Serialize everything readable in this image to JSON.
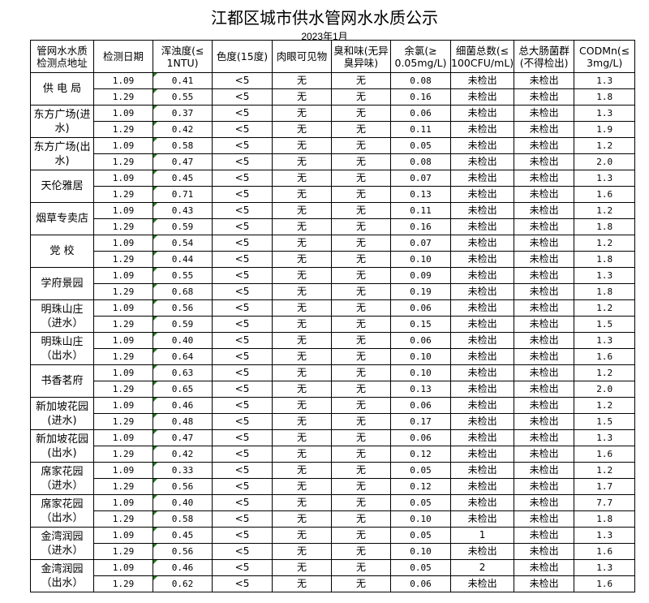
{
  "title": "江都区城市供水管网水水质公示",
  "subtitle": "2023年1月",
  "table": {
    "headers": [
      "管网水水质\n检测点地址",
      "检测日期",
      "浑浊度(≤\n1NTU)",
      "色度(15度)",
      "肉眼可见物",
      "臭和味(无异\n臭异味)",
      "余氯(≥\n0.05mg/L)",
      "细菌总数(≤\n100CFU/mL)",
      "总大肠菌群\n(不得检出)",
      "CODMn(≤\n3mg/L)"
    ],
    "sites": [
      {
        "name": "供 电 局",
        "rows": [
          [
            "1.09",
            "0.41",
            "<5",
            "无",
            "无",
            "0.08",
            "未检出",
            "未检出",
            "1.3"
          ],
          [
            "1.29",
            "0.55",
            "<5",
            "无",
            "无",
            "0.16",
            "未检出",
            "未检出",
            "1.8"
          ]
        ]
      },
      {
        "name": "东方广场(进\n水)",
        "rows": [
          [
            "1.09",
            "0.37",
            "<5",
            "无",
            "无",
            "0.06",
            "未检出",
            "未检出",
            "1.3"
          ],
          [
            "1.29",
            "0.42",
            "<5",
            "无",
            "无",
            "0.11",
            "未检出",
            "未检出",
            "1.9"
          ]
        ]
      },
      {
        "name": "东方广场(出\n水)",
        "rows": [
          [
            "1.09",
            "0.58",
            "<5",
            "无",
            "无",
            "0.05",
            "未检出",
            "未检出",
            "1.2"
          ],
          [
            "1.29",
            "0.47",
            "<5",
            "无",
            "无",
            "0.08",
            "未检出",
            "未检出",
            "2.0"
          ]
        ]
      },
      {
        "name": "天伦雅居",
        "rows": [
          [
            "1.09",
            "0.45",
            "<5",
            "无",
            "无",
            "0.07",
            "未检出",
            "未检出",
            "1.3"
          ],
          [
            "1.29",
            "0.71",
            "<5",
            "无",
            "无",
            "0.13",
            "未检出",
            "未检出",
            "1.6"
          ]
        ]
      },
      {
        "name": "烟草专卖店",
        "rows": [
          [
            "1.09",
            "0.43",
            "<5",
            "无",
            "无",
            "0.11",
            "未检出",
            "未检出",
            "1.2"
          ],
          [
            "1.29",
            "0.59",
            "<5",
            "无",
            "无",
            "0.16",
            "未检出",
            "未检出",
            "1.8"
          ]
        ]
      },
      {
        "name": "党  校",
        "rows": [
          [
            "1.09",
            "0.54",
            "<5",
            "无",
            "无",
            "0.07",
            "未检出",
            "未检出",
            "1.2"
          ],
          [
            "1.29",
            "0.44",
            "<5",
            "无",
            "无",
            "0.10",
            "未检出",
            "未检出",
            "1.8"
          ]
        ]
      },
      {
        "name": "学府景园",
        "rows": [
          [
            "1.09",
            "0.55",
            "<5",
            "无",
            "无",
            "0.09",
            "未检出",
            "未检出",
            "1.3"
          ],
          [
            "1.29",
            "0.68",
            "<5",
            "无",
            "无",
            "0.19",
            "未检出",
            "未检出",
            "1.8"
          ]
        ]
      },
      {
        "name": "明珠山庄\n（进水）",
        "rows": [
          [
            "1.09",
            "0.56",
            "<5",
            "无",
            "无",
            "0.06",
            "未检出",
            "未检出",
            "1.2"
          ],
          [
            "1.29",
            "0.59",
            "<5",
            "无",
            "无",
            "0.15",
            "未检出",
            "未检出",
            "1.5"
          ]
        ]
      },
      {
        "name": "明珠山庄\n（出水）",
        "rows": [
          [
            "1.09",
            "0.40",
            "<5",
            "无",
            "无",
            "0.06",
            "未检出",
            "未检出",
            "1.3"
          ],
          [
            "1.29",
            "0.64",
            "<5",
            "无",
            "无",
            "0.10",
            "未检出",
            "未检出",
            "1.6"
          ]
        ]
      },
      {
        "name": "书香茗府",
        "rows": [
          [
            "1.09",
            "0.63",
            "<5",
            "无",
            "无",
            "0.10",
            "未检出",
            "未检出",
            "1.2"
          ],
          [
            "1.29",
            "0.65",
            "<5",
            "无",
            "无",
            "0.13",
            "未检出",
            "未检出",
            "2.0"
          ]
        ]
      },
      {
        "name": "新加坡花园\n(进水)",
        "rows": [
          [
            "1.09",
            "0.46",
            "<5",
            "无",
            "无",
            "0.06",
            "未检出",
            "未检出",
            "1.2"
          ],
          [
            "1.29",
            "0.48",
            "<5",
            "无",
            "无",
            "0.17",
            "未检出",
            "未检出",
            "1.5"
          ]
        ]
      },
      {
        "name": "新加坡花园\n(出水)",
        "rows": [
          [
            "1.09",
            "0.47",
            "<5",
            "无",
            "无",
            "0.06",
            "未检出",
            "未检出",
            "1.3"
          ],
          [
            "1.29",
            "0.42",
            "<5",
            "无",
            "无",
            "0.12",
            "未检出",
            "未检出",
            "1.6"
          ]
        ]
      },
      {
        "name": "席家花园\n（进水）",
        "rows": [
          [
            "1.09",
            "0.33",
            "<5",
            "无",
            "无",
            "0.05",
            "未检出",
            "未检出",
            "1.2"
          ],
          [
            "1.29",
            "0.56",
            "<5",
            "无",
            "无",
            "0.12",
            "未检出",
            "未检出",
            "1.7"
          ]
        ]
      },
      {
        "name": "席家花园\n（出水）",
        "rows": [
          [
            "1.09",
            "0.40",
            "<5",
            "无",
            "无",
            "0.05",
            "未检出",
            "未检出",
            "7.7"
          ],
          [
            "1.29",
            "0.58",
            "<5",
            "无",
            "无",
            "0.10",
            "未检出",
            "未检出",
            "1.8"
          ]
        ]
      },
      {
        "name": "金湾润园\n（进水）",
        "rows": [
          [
            "1.09",
            "0.45",
            "<5",
            "无",
            "无",
            "0.05",
            "1",
            "未检出",
            "1.3"
          ],
          [
            "1.29",
            "0.56",
            "<5",
            "无",
            "无",
            "0.10",
            "未检出",
            "未检出",
            "1.6"
          ]
        ]
      },
      {
        "name": "金湾润园\n（出水）",
        "rows": [
          [
            "1.09",
            "0.46",
            "<5",
            "无",
            "无",
            "0.05",
            "2",
            "未检出",
            "1.3"
          ],
          [
            "1.29",
            "0.62",
            "<5",
            "无",
            "无",
            "0.06",
            "未检出",
            "未检出",
            "1.6"
          ]
        ]
      }
    ]
  },
  "colors": {
    "cell_marker": "#1e7b1e",
    "border": "#000000"
  }
}
